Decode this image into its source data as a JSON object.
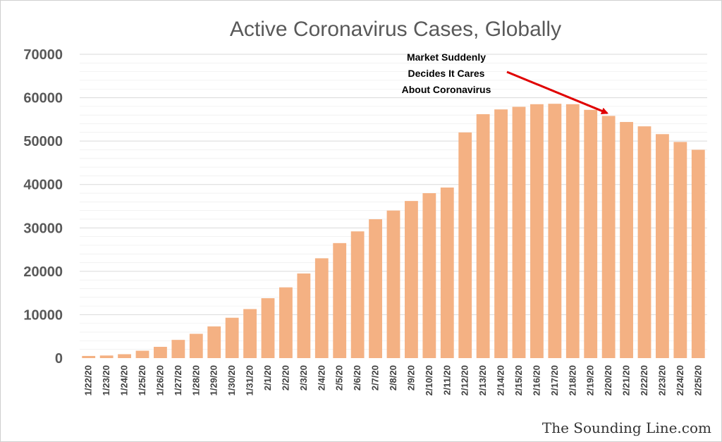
{
  "colors": {
    "bar": "#F4B183",
    "gridline": "#d9d9d9",
    "arrow": "#e00000"
  },
  "chart_data": {
    "type": "bar",
    "title": "Active Coronavirus Cases, Globally",
    "xlabel": "",
    "ylabel": "",
    "ylim": [
      0,
      70000
    ],
    "yticks": [
      0,
      10000,
      20000,
      30000,
      40000,
      50000,
      60000,
      70000
    ],
    "grid": true,
    "categories": [
      "1/22/20",
      "1/23/20",
      "1/24/20",
      "1/25/20",
      "1/26/20",
      "1/27/20",
      "1/28/20",
      "1/29/20",
      "1/30/20",
      "1/31/20",
      "2/1/20",
      "2/2/20",
      "2/3/20",
      "2/4/20",
      "2/5/20",
      "2/6/20",
      "2/7/20",
      "2/8/20",
      "2/9/20",
      "2/10/20",
      "2/11/20",
      "2/12/20",
      "2/13/20",
      "2/14/20",
      "2/15/20",
      "2/16/20",
      "2/17/20",
      "2/18/20",
      "2/19/20",
      "2/20/20",
      "2/21/20",
      "2/22/20",
      "2/23/20",
      "2/24/20",
      "2/25/20"
    ],
    "values": [
      500,
      600,
      900,
      1700,
      2600,
      4200,
      5600,
      7300,
      9300,
      11300,
      13800,
      16300,
      19500,
      23000,
      26500,
      29200,
      32000,
      34000,
      36200,
      38000,
      39300,
      52000,
      56200,
      57300,
      57900,
      58500,
      58600,
      58500,
      57200,
      55800,
      54400,
      53400,
      51600,
      49800,
      48000
    ],
    "annotation": {
      "lines": [
        "Market Suddenly",
        "Decides It Cares",
        "About Coronavirus"
      ],
      "target_category": "2/20/20"
    }
  },
  "watermark": "The Sounding Line.com"
}
